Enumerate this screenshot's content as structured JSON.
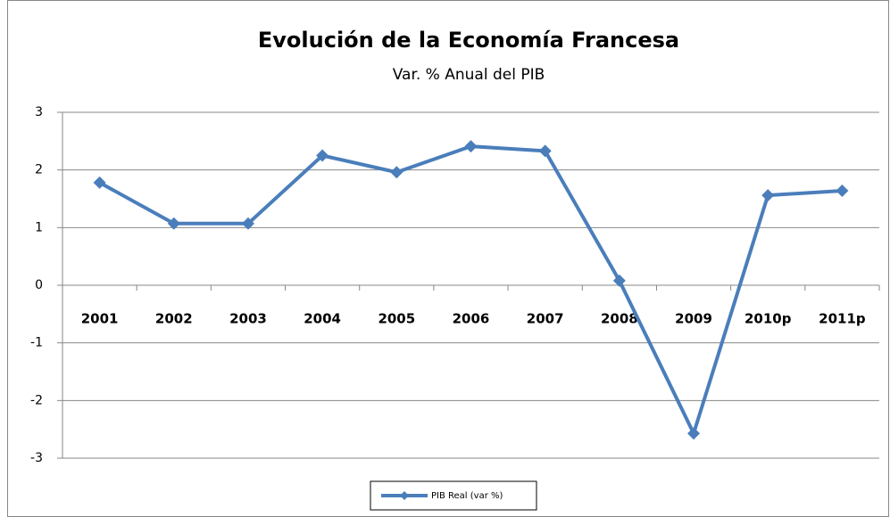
{
  "chart_data": {
    "type": "line",
    "title": "Evolución de la Economía Francesa",
    "subtitle": "Var. % Anual del PIB",
    "categories": [
      "2001",
      "2002",
      "2003",
      "2004",
      "2005",
      "2006",
      "2007",
      "2008",
      "2009",
      "2010p",
      "2011p"
    ],
    "series": [
      {
        "name": "PIB Real (var %)",
        "color": "#4a7ebb",
        "values": [
          1.78,
          1.07,
          1.07,
          2.25,
          1.96,
          2.41,
          2.33,
          0.08,
          -2.57,
          1.56,
          1.64
        ]
      }
    ],
    "ylim": [
      -3,
      3
    ],
    "yticks": [
      -3,
      -2,
      -1,
      0,
      1,
      2,
      3
    ],
    "grid": true,
    "legend": "bottom"
  }
}
